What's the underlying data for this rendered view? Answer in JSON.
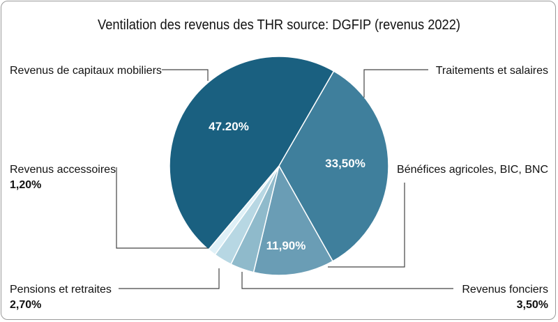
{
  "chart_data": {
    "type": "pie",
    "title": "Ventilation des revenus des THR source: DGFIP (revenus 2022)",
    "slices": [
      {
        "name": "Traitements et salaires",
        "value": 33.5,
        "label": "33,50%",
        "color": "#3f7f9c",
        "label_inside": true
      },
      {
        "name": "Bénéfices agricoles, BIC, BNC",
        "value": 11.9,
        "label": "11,90%",
        "color": "#6a9db5",
        "label_inside": true
      },
      {
        "name": "Revenus fonciers",
        "value": 3.5,
        "label": "3,50%",
        "color": "#8fbacb",
        "label_inside": false
      },
      {
        "name": "Pensions et retraites",
        "value": 2.7,
        "label": "2,70%",
        "color": "#b7d7e3",
        "label_inside": false
      },
      {
        "name": "Revenus accessoires",
        "value": 1.2,
        "label": "1,20%",
        "color": "#dff0f7",
        "label_inside": false
      },
      {
        "name": "Revenus de capitaux mobiliers",
        "value": 47.2,
        "label": "47.20%",
        "color": "#1a6080",
        "label_inside": true
      }
    ],
    "start_angle_deg": 30
  }
}
